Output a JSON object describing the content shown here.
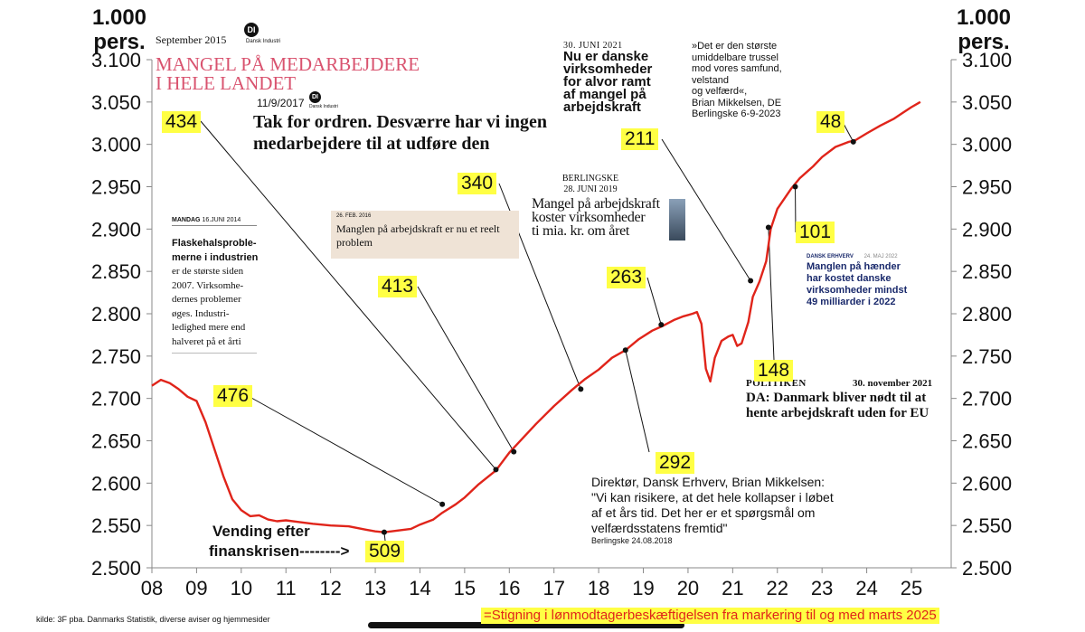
{
  "unit_label": "1.000 pers.",
  "footer_source": "kilde: 3F pba. Danmarks Statistik, diverse aviser og hjemmesider",
  "footer_legend": "=Stigning i lønmodtagerbeskæftigelsen fra markering til og med marts 2025",
  "colors": {
    "line": "#e0241a",
    "highlight": "#ffff44",
    "pink": "#d9536f",
    "navy": "#1a2a6c"
  },
  "chart_data": {
    "type": "line",
    "title": "",
    "xlabel": "",
    "ylabel": "1.000 pers.",
    "ylim": [
      2500,
      3100
    ],
    "xlim": [
      2008,
      2025.9
    ],
    "yticks": [
      "3.100",
      "3.050",
      "3.000",
      "2.950",
      "2.900",
      "2.850",
      "2.800",
      "2.750",
      "2.700",
      "2.650",
      "2.600",
      "2.550",
      "2.500"
    ],
    "ytick_values": [
      3100,
      3050,
      3000,
      2950,
      2900,
      2850,
      2800,
      2750,
      2700,
      2650,
      2600,
      2550,
      2500
    ],
    "xticks": [
      "08",
      "09",
      "10",
      "11",
      "12",
      "13",
      "14",
      "15",
      "16",
      "17",
      "18",
      "19",
      "20",
      "21",
      "22",
      "23",
      "24",
      "25"
    ],
    "xtick_values": [
      2008,
      2009,
      2010,
      2011,
      2012,
      2013,
      2014,
      2015,
      2016,
      2017,
      2018,
      2019,
      2020,
      2021,
      2022,
      2023,
      2024,
      2025
    ],
    "series": [
      {
        "name": "Lønmodtagerbeskæftigelse",
        "x": [
          2008.0,
          2008.2,
          2008.4,
          2008.6,
          2008.8,
          2009.0,
          2009.2,
          2009.4,
          2009.6,
          2009.8,
          2010.0,
          2010.2,
          2010.4,
          2010.6,
          2010.8,
          2011.0,
          2011.3,
          2011.6,
          2012.0,
          2012.4,
          2012.8,
          2013.0,
          2013.2,
          2013.5,
          2013.8,
          2014.0,
          2014.3,
          2014.5,
          2014.8,
          2015.0,
          2015.3,
          2015.7,
          2016.0,
          2016.3,
          2016.6,
          2017.0,
          2017.4,
          2017.7,
          2018.0,
          2018.3,
          2018.6,
          2018.9,
          2019.2,
          2019.45,
          2019.7,
          2019.9,
          2020.1,
          2020.2,
          2020.3,
          2020.4,
          2020.5,
          2020.6,
          2020.75,
          2020.9,
          2021.0,
          2021.1,
          2021.2,
          2021.35,
          2021.45,
          2021.6,
          2021.75,
          2021.85,
          2022.0,
          2022.3,
          2022.5,
          2022.8,
          2023.0,
          2023.3,
          2023.6,
          2023.75,
          2024.0,
          2024.3,
          2024.6,
          2024.8,
          2025.0,
          2025.2
        ],
        "values": [
          2715,
          2722,
          2718,
          2711,
          2702,
          2697,
          2672,
          2640,
          2608,
          2581,
          2568,
          2561,
          2562,
          2557,
          2555,
          2556,
          2554,
          2552,
          2550,
          2549,
          2545,
          2543,
          2542,
          2544,
          2546,
          2551,
          2557,
          2565,
          2575,
          2583,
          2598,
          2615,
          2636,
          2653,
          2670,
          2691,
          2710,
          2723,
          2734,
          2748,
          2757,
          2770,
          2780,
          2786,
          2793,
          2797,
          2800,
          2802,
          2788,
          2735,
          2720,
          2748,
          2768,
          2773,
          2775,
          2762,
          2765,
          2790,
          2820,
          2838,
          2862,
          2900,
          2924,
          2947,
          2960,
          2974,
          2985,
          2997,
          3003,
          3005,
          3013,
          3022,
          3030,
          3037,
          3044,
          3050
        ]
      }
    ],
    "points": [
      {
        "label": "476",
        "x": 2014.5,
        "y": 2575
      },
      {
        "label": "509",
        "x": 2013.2,
        "y": 2542
      },
      {
        "label": "434",
        "x": 2015.7,
        "y": 2616
      },
      {
        "label": "413",
        "x": 2016.1,
        "y": 2637
      },
      {
        "label": "340",
        "x": 2017.6,
        "y": 2711
      },
      {
        "label": "263",
        "x": 2019.4,
        "y": 2787
      },
      {
        "label": "292",
        "x": 2018.6,
        "y": 2757
      },
      {
        "label": "211",
        "x": 2021.4,
        "y": 2839
      },
      {
        "label": "148",
        "x": 2021.8,
        "y": 2902
      },
      {
        "label": "101",
        "x": 2022.4,
        "y": 2950
      },
      {
        "label": "48",
        "x": 2023.7,
        "y": 3003
      }
    ]
  },
  "clippings": {
    "di_2015": {
      "date": "September 2015",
      "logo": "DI",
      "org": "Dansk Industri",
      "line1": "MANGEL PÅ MEDARBEJDERE",
      "line2": "I HELE LANDET"
    },
    "di_2017": {
      "date": "11/9/2017",
      "logo": "DI",
      "org": "Dansk Industri",
      "line1": "Tak for ordren. Desværre har vi ingen",
      "line2": "medarbejdere til at udføre den"
    },
    "di_2021": {
      "date": "30. JUNI 2021",
      "l1": "Nu er danske",
      "l2": "virksomheder",
      "l3": "for alvor ramt",
      "l4": "af mangel på",
      "l5": "arbejdskraft"
    },
    "quote_2023": {
      "l1": "»Det er den største",
      "l2": "umiddelbare trussel",
      "l3": "mod vores samfund,",
      "l4": "velstand",
      "l5": "og velfærd«,",
      "l6": "Brian Mikkelsen, DE",
      "l7": "Berlingske 6-9-2023"
    },
    "mandag_2014": {
      "day": "MANDAG",
      "date": "16.JUNI 2014",
      "l1": "Flaskehalsproble-",
      "l2": "merne i industrien",
      "l3": "er de største siden",
      "l4": "2007. Virksomhe-",
      "l5": "dernes problemer",
      "l6": "øges. Industri-",
      "l7": "ledighed mere end",
      "l8": "halveret på et årti"
    },
    "feb_2016": {
      "date": "26. FEB. 2016",
      "l1": "Manglen på arbejdskraft er nu et reelt",
      "l2": "problem"
    },
    "berlingske_2019": {
      "paper": "BERLINGSKE",
      "date": "28. JUNI 2019",
      "l1": "Mangel på arbejdskraft",
      "l2": "koster virksomheder",
      "l3": "ti mia. kr. om året"
    },
    "de_2022": {
      "org": "DANSK ERHVERV",
      "date": "24. MAJ 2022",
      "l1": "Manglen på hænder",
      "l2": "har kostet danske",
      "l3": "virksomheder mindst",
      "l4": "49 milliarder i 2022"
    },
    "politiken_2021": {
      "paper": "POLITIKEN",
      "date": "30. november 2021",
      "l1": "DA: Danmark bliver nødt til at",
      "l2": "hente arbejdskraft uden for EU"
    },
    "quote_2018": {
      "l1": "Direktør, Dansk Erhverv, Brian Mikkelsen:",
      "l2": "\"Vi kan risikere, at det hele kollapser i løbet",
      "l3": "af et års tid. Det her er et spørgsmål om",
      "l4": "velfærdsstatens fremtid\"",
      "src": "Berlingske 24.08.2018"
    },
    "vending": {
      "l1": "Vending efter",
      "l2": "finanskrisen-------->"
    }
  }
}
